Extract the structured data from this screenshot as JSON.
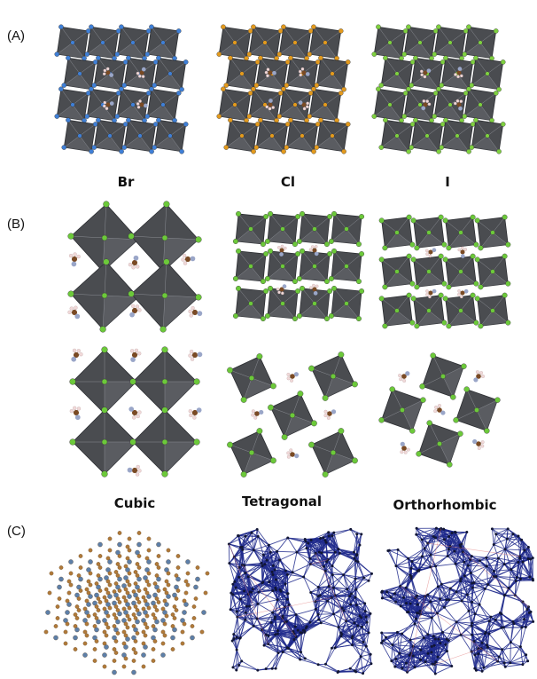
{
  "panels": {
    "a": {
      "label": "(A)",
      "captions": [
        "Br",
        "Cl",
        "I"
      ]
    },
    "b": {
      "label": "(B)",
      "captions": [
        "Cubic",
        "Tetragonal",
        "Orthorhombic"
      ]
    },
    "c": {
      "label": "(C)"
    }
  },
  "colors": {
    "octahedron": "#4a4c50",
    "octahedron_light": "#777a80",
    "bromide": "#3f7fd6",
    "chloride": "#e39a1d",
    "iodide": "#7ed03f",
    "halide_green": "#6cc93a",
    "carbon": "#7a4a24",
    "nitrogen": "#9aa6c8",
    "hydrogen": "#f1d9d9",
    "network_blue": "#1f2a8c",
    "atom_brown": "#b07a3a",
    "atom_blue": "#5d7fa8"
  },
  "icons": [
    "octahedron-shape",
    "atom-sphere",
    "methylammonium-molecule"
  ]
}
